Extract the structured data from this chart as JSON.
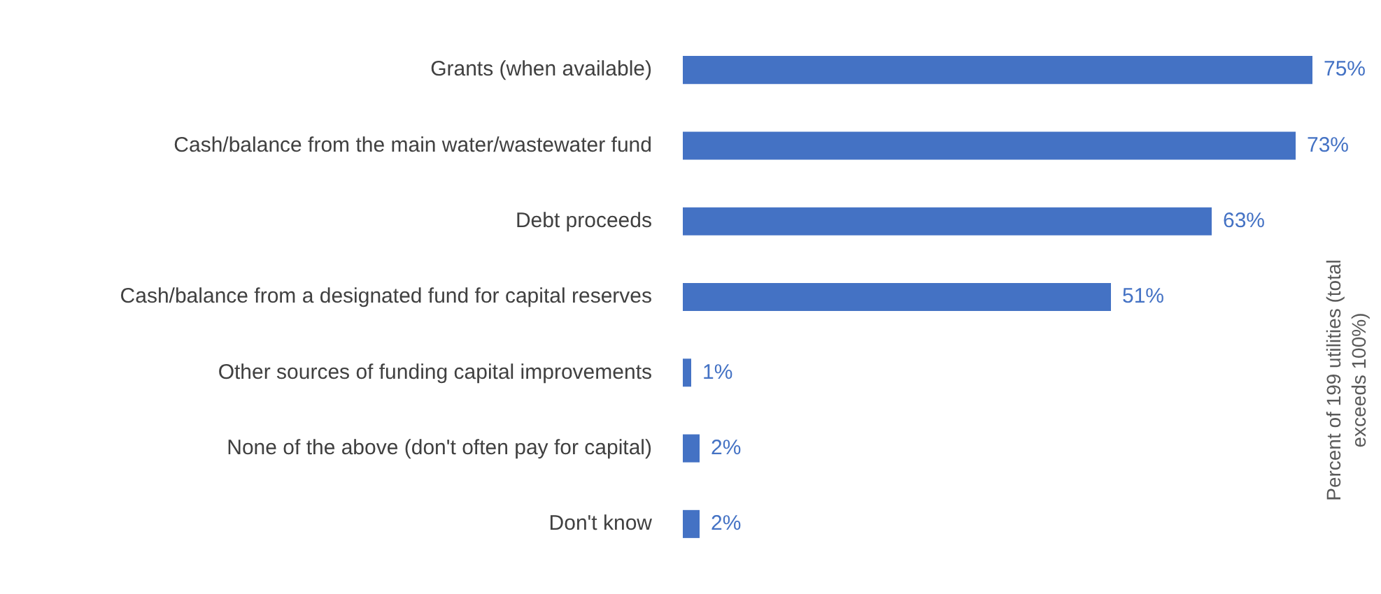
{
  "chart_data": {
    "type": "bar",
    "orientation": "horizontal",
    "categories": [
      "Grants (when available)",
      "Cash/balance from the main water/wastewater fund",
      "Debt proceeds",
      "Cash/balance from a designated fund for capital reserves",
      "Other sources of funding capital improvements",
      "None of the above (don't often pay for capital)",
      "Don't know"
    ],
    "values": [
      75,
      73,
      63,
      51,
      1,
      2,
      2
    ],
    "value_labels": [
      "75%",
      "73%",
      "63%",
      "51%",
      "1%",
      "2%",
      "2%"
    ],
    "color": "#4472c4",
    "y2label": "Percent of 199 utilities (total exceeds 100%)",
    "legend": false,
    "tick_labels": "y"
  }
}
